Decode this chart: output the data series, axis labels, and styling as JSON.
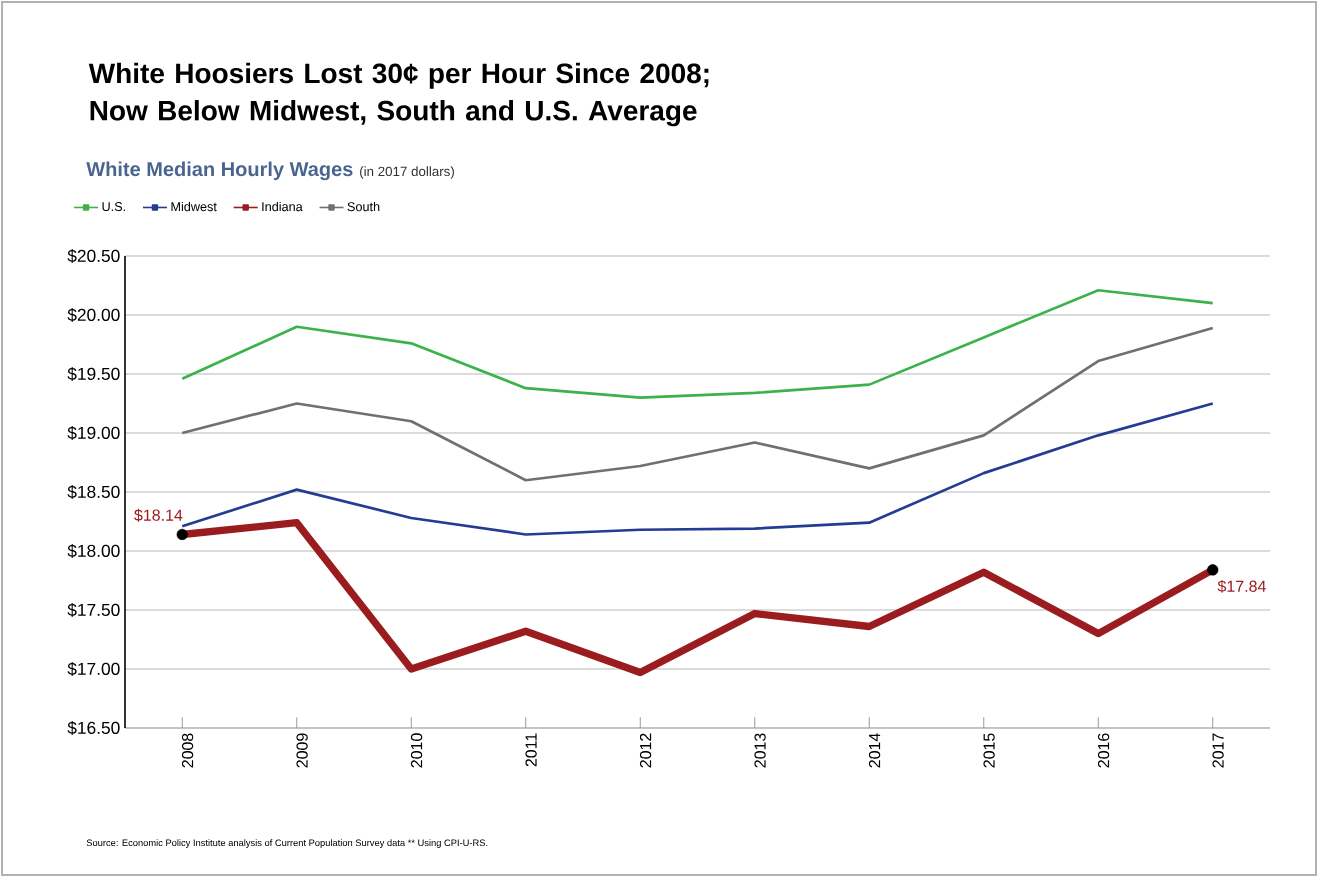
{
  "chart_data": {
    "type": "line",
    "title": "White Hoosiers Lost 30¢ per Hour Since 2008; Now Below Midwest, South and U.S. Average",
    "subtitle": "White Median Hourly Wages",
    "x": [
      2008,
      2009,
      2010,
      2011,
      2012,
      2013,
      2014,
      2015,
      2016,
      2017
    ],
    "series": [
      {
        "name": "U.S.",
        "color": "#3cb34a",
        "values": [
          19.46,
          19.9,
          19.76,
          19.38,
          19.3,
          19.34,
          19.41,
          19.81,
          20.21,
          20.1
        ]
      },
      {
        "name": "Midwest",
        "color": "#243c94",
        "values": [
          18.21,
          18.52,
          18.28,
          18.14,
          18.18,
          18.19,
          18.24,
          18.66,
          18.98,
          19.25
        ]
      },
      {
        "name": "Indiana",
        "color": "#9b1c1f",
        "values": [
          18.14,
          18.24,
          17.0,
          17.32,
          16.97,
          17.47,
          17.36,
          17.82,
          17.3,
          17.84
        ]
      },
      {
        "name": "South",
        "color": "#707070",
        "values": [
          19.0,
          19.25,
          19.1,
          18.6,
          18.72,
          18.92,
          18.7,
          18.98,
          19.61,
          19.89
        ]
      }
    ],
    "xlim": [
      2007.5,
      2017.5
    ],
    "xticks": [
      2008,
      2009,
      2010,
      2011,
      2012,
      2013,
      2014,
      2015,
      2016,
      2017
    ],
    "ylim": [
      16.5,
      20.5
    ],
    "yticks": [
      {
        "value": 16.5,
        "label": "$16.50"
      },
      {
        "value": 17,
        "label": "$17.00"
      },
      {
        "value": 17.5,
        "label": "$17.50"
      },
      {
        "value": 18,
        "label": "$18.00"
      },
      {
        "value": 18.5,
        "label": "$18.50"
      },
      {
        "value": 19,
        "label": "$19.00"
      },
      {
        "value": 19.5,
        "label": "$19.50"
      },
      {
        "value": 20,
        "label": "$20.00"
      },
      {
        "value": 20.5,
        "label": "$20.50"
      }
    ],
    "grid": "y",
    "legend": "top left",
    "line_style": "solid",
    "annotations": [
      "(in 2017 dollars)",
      {
        "text": "$18.14",
        "x": 2008,
        "y": 18.14
      },
      {
        "text": "$17.84",
        "x": 2017,
        "y": 17.84
      },
      "Source: Economic Policy Institute analysis of Current Population Survey data ** Using CPI-U-RS."
    ]
  }
}
